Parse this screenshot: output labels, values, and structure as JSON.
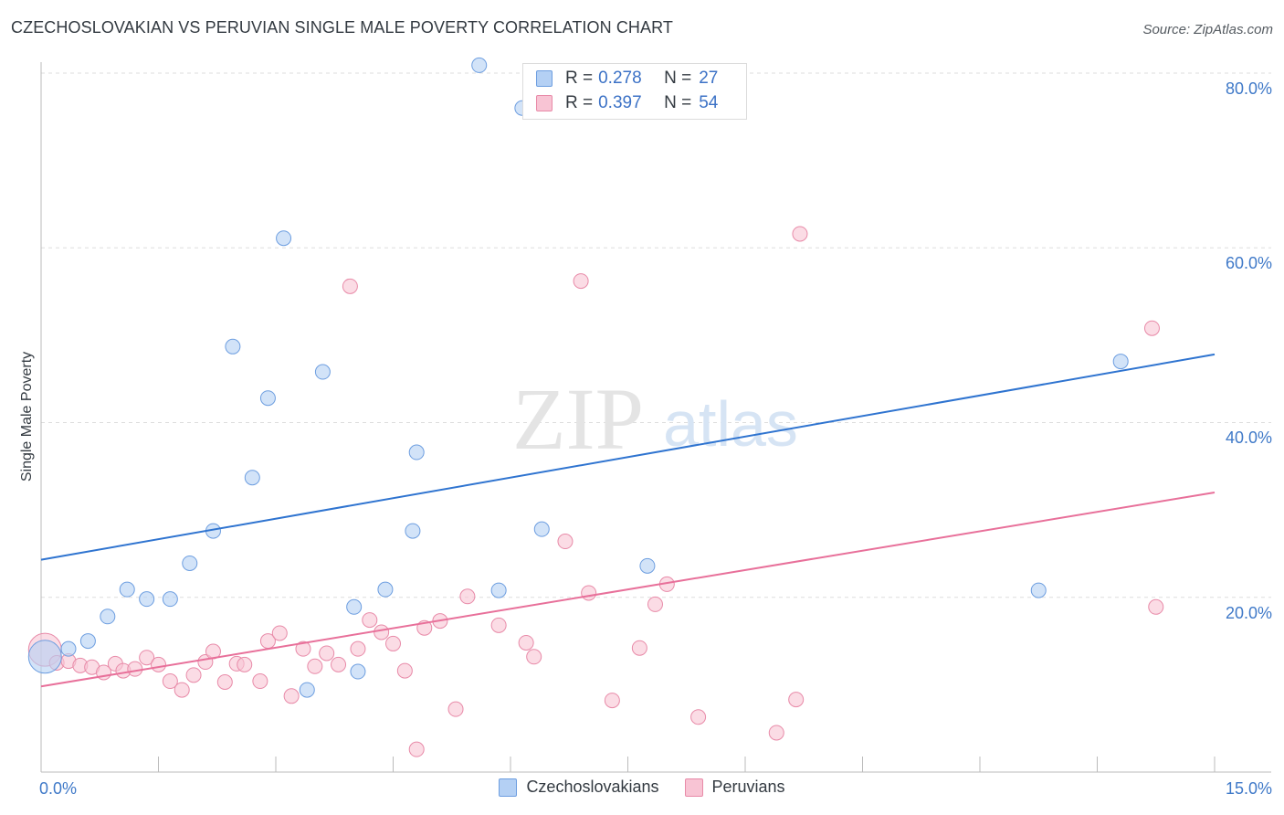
{
  "title": "CZECHOSLOVAKIAN VS PERUVIAN SINGLE MALE POVERTY CORRELATION CHART",
  "source": "Source: ZipAtlas.com",
  "watermark": {
    "zip": "ZIP",
    "atlas": "atlas"
  },
  "legend_top": {
    "rows": [
      {
        "r_label": "R =",
        "r_value": "0.278",
        "n_label": "N =",
        "n_value": "27"
      },
      {
        "r_label": "R =",
        "r_value": "0.397",
        "n_label": "N =",
        "n_value": "54"
      }
    ]
  },
  "legend_bottom": [
    "Czechoslovakians",
    "Peruvians"
  ],
  "colors": {
    "blue_fill": "#b4d0f4",
    "blue_stroke": "#6d9ee0",
    "blue_line": "#2f74d0",
    "pink_fill": "#f8c4d4",
    "pink_stroke": "#e88aa8",
    "pink_line": "#e8709a",
    "tick_text": "#3f79c8",
    "grid": "#dddddd"
  },
  "chart_data": {
    "type": "scatter",
    "title": "CZECHOSLOVAKIAN VS PERUVIAN SINGLE MALE POVERTY CORRELATION CHART",
    "xlabel": "",
    "ylabel": "Single Male Poverty",
    "xlim": [
      0,
      15
    ],
    "ylim": [
      0,
      80
    ],
    "x_tick_labels": [
      "0.0%",
      "15.0%"
    ],
    "y_ticks": [
      20,
      40,
      60,
      80
    ],
    "y_tick_labels": [
      "20.0%",
      "40.0%",
      "60.0%",
      "80.0%"
    ],
    "series": [
      {
        "name": "Czechoslovakians",
        "r": 0.278,
        "n": 27,
        "trend": {
          "x": [
            0,
            15
          ],
          "y": [
            24.3,
            47.8
          ]
        },
        "points": [
          {
            "x": 0.05,
            "y": 13.2,
            "big": true
          },
          {
            "x": 0.35,
            "y": 14.1
          },
          {
            "x": 0.6,
            "y": 15.0
          },
          {
            "x": 0.85,
            "y": 17.8
          },
          {
            "x": 1.1,
            "y": 20.9
          },
          {
            "x": 1.35,
            "y": 19.8
          },
          {
            "x": 1.65,
            "y": 19.8
          },
          {
            "x": 1.9,
            "y": 23.9
          },
          {
            "x": 2.2,
            "y": 27.6
          },
          {
            "x": 2.45,
            "y": 48.7
          },
          {
            "x": 2.9,
            "y": 42.8
          },
          {
            "x": 2.7,
            "y": 33.7
          },
          {
            "x": 3.1,
            "y": 61.1
          },
          {
            "x": 3.4,
            "y": 9.4
          },
          {
            "x": 3.6,
            "y": 45.8
          },
          {
            "x": 4.0,
            "y": 18.9
          },
          {
            "x": 4.05,
            "y": 11.5
          },
          {
            "x": 4.4,
            "y": 20.9
          },
          {
            "x": 4.75,
            "y": 27.6
          },
          {
            "x": 4.8,
            "y": 36.6
          },
          {
            "x": 5.6,
            "y": 80.9
          },
          {
            "x": 5.85,
            "y": 20.8
          },
          {
            "x": 6.15,
            "y": 76.0
          },
          {
            "x": 6.4,
            "y": 27.8
          },
          {
            "x": 7.75,
            "y": 23.6
          },
          {
            "x": 12.75,
            "y": 20.8
          },
          {
            "x": 13.8,
            "y": 47.0
          }
        ]
      },
      {
        "name": "Peruvians",
        "r": 0.397,
        "n": 54,
        "trend": {
          "x": [
            0,
            15
          ],
          "y": [
            9.8,
            32.0
          ]
        },
        "points": [
          {
            "x": 0.05,
            "y": 14.0,
            "big": true
          },
          {
            "x": 0.2,
            "y": 12.5
          },
          {
            "x": 0.35,
            "y": 12.7
          },
          {
            "x": 0.5,
            "y": 12.2
          },
          {
            "x": 0.65,
            "y": 12.0
          },
          {
            "x": 0.8,
            "y": 11.4
          },
          {
            "x": 0.95,
            "y": 12.4
          },
          {
            "x": 1.05,
            "y": 11.6
          },
          {
            "x": 1.2,
            "y": 11.8
          },
          {
            "x": 1.35,
            "y": 13.1
          },
          {
            "x": 1.5,
            "y": 12.3
          },
          {
            "x": 1.65,
            "y": 10.4
          },
          {
            "x": 1.8,
            "y": 9.4
          },
          {
            "x": 1.95,
            "y": 11.1
          },
          {
            "x": 2.1,
            "y": 12.6
          },
          {
            "x": 2.2,
            "y": 13.8
          },
          {
            "x": 2.35,
            "y": 10.3
          },
          {
            "x": 2.5,
            "y": 12.4
          },
          {
            "x": 2.6,
            "y": 12.3
          },
          {
            "x": 2.8,
            "y": 10.4
          },
          {
            "x": 2.9,
            "y": 15.0
          },
          {
            "x": 3.05,
            "y": 15.9
          },
          {
            "x": 3.2,
            "y": 8.7
          },
          {
            "x": 3.35,
            "y": 14.1
          },
          {
            "x": 3.5,
            "y": 12.1
          },
          {
            "x": 3.65,
            "y": 13.6
          },
          {
            "x": 3.8,
            "y": 12.3
          },
          {
            "x": 3.95,
            "y": 55.6
          },
          {
            "x": 4.05,
            "y": 14.1
          },
          {
            "x": 4.2,
            "y": 17.4
          },
          {
            "x": 4.35,
            "y": 16.0
          },
          {
            "x": 4.5,
            "y": 14.7
          },
          {
            "x": 4.65,
            "y": 11.6
          },
          {
            "x": 4.8,
            "y": 2.6
          },
          {
            "x": 4.9,
            "y": 16.5
          },
          {
            "x": 5.1,
            "y": 17.3
          },
          {
            "x": 5.3,
            "y": 7.2
          },
          {
            "x": 5.45,
            "y": 20.1
          },
          {
            "x": 5.85,
            "y": 16.8
          },
          {
            "x": 6.2,
            "y": 14.8
          },
          {
            "x": 6.3,
            "y": 13.2
          },
          {
            "x": 6.7,
            "y": 26.4
          },
          {
            "x": 6.9,
            "y": 56.2
          },
          {
            "x": 7.0,
            "y": 20.5
          },
          {
            "x": 7.3,
            "y": 8.2
          },
          {
            "x": 7.65,
            "y": 14.2
          },
          {
            "x": 7.85,
            "y": 19.2
          },
          {
            "x": 8.0,
            "y": 21.5
          },
          {
            "x": 8.4,
            "y": 6.3
          },
          {
            "x": 9.4,
            "y": 4.5
          },
          {
            "x": 9.65,
            "y": 8.3
          },
          {
            "x": 9.7,
            "y": 61.6
          },
          {
            "x": 14.2,
            "y": 50.8
          },
          {
            "x": 14.25,
            "y": 18.9
          }
        ]
      }
    ]
  }
}
